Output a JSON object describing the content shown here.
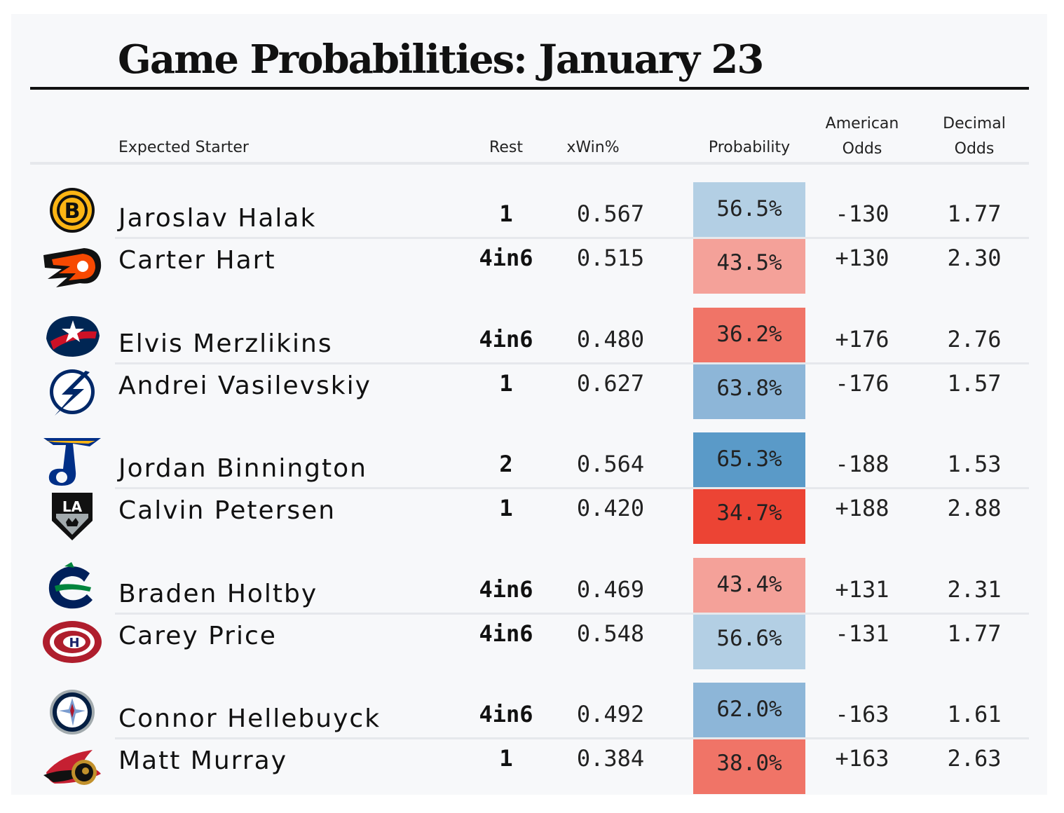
{
  "title": "Game Probabilities: January 23",
  "headers": {
    "starter": "Expected Starter",
    "rest": "Rest",
    "xwin": "xWin%",
    "probability": "Probability",
    "american_1": "American",
    "american_2": "Odds",
    "decimal_1": "Decimal",
    "decimal_2": "Odds"
  },
  "colors": {
    "blue_light": "#b3cfe4",
    "blue_mid": "#8db6d8",
    "blue_dark": "#5a9ac8",
    "red_light": "#f4a199",
    "red_mid": "#f07467",
    "red_dark": "#ec4434"
  },
  "games": [
    {
      "rows": [
        {
          "team_icon": "bruins-logo-icon",
          "name": "Jaroslav Halak",
          "rest": "1",
          "xwin": "0.567",
          "probability": "56.5%",
          "prob_value": 56.5,
          "american": "-130",
          "decimal": "1.77",
          "color": "#b3cfe4"
        },
        {
          "team_icon": "flyers-logo-icon",
          "name": "Carter Hart",
          "rest": "4in6",
          "xwin": "0.515",
          "probability": "43.5%",
          "prob_value": 43.5,
          "american": "+130",
          "decimal": "2.30",
          "color": "#f4a199"
        }
      ]
    },
    {
      "rows": [
        {
          "team_icon": "blue-jackets-logo-icon",
          "name": "Elvis Merzlikins",
          "rest": "4in6",
          "xwin": "0.480",
          "probability": "36.2%",
          "prob_value": 36.2,
          "american": "+176",
          "decimal": "2.76",
          "color": "#f07467"
        },
        {
          "team_icon": "lightning-logo-icon",
          "name": "Andrei Vasilevskiy",
          "rest": "1",
          "xwin": "0.627",
          "probability": "63.8%",
          "prob_value": 63.8,
          "american": "-176",
          "decimal": "1.57",
          "color": "#8db6d8"
        }
      ]
    },
    {
      "rows": [
        {
          "team_icon": "blues-logo-icon",
          "name": "Jordan Binnington",
          "rest": "2",
          "xwin": "0.564",
          "probability": "65.3%",
          "prob_value": 65.3,
          "american": "-188",
          "decimal": "1.53",
          "color": "#5a9ac8"
        },
        {
          "team_icon": "kings-logo-icon",
          "name": "Calvin Petersen",
          "rest": "1",
          "xwin": "0.420",
          "probability": "34.7%",
          "prob_value": 34.7,
          "american": "+188",
          "decimal": "2.88",
          "color": "#ec4434"
        }
      ]
    },
    {
      "rows": [
        {
          "team_icon": "canucks-logo-icon",
          "name": "Braden Holtby",
          "rest": "4in6",
          "xwin": "0.469",
          "probability": "43.4%",
          "prob_value": 43.4,
          "american": "+131",
          "decimal": "2.31",
          "color": "#f4a199"
        },
        {
          "team_icon": "canadiens-logo-icon",
          "name": "Carey Price",
          "rest": "4in6",
          "xwin": "0.548",
          "probability": "56.6%",
          "prob_value": 56.6,
          "american": "-131",
          "decimal": "1.77",
          "color": "#b3cfe4"
        }
      ]
    },
    {
      "rows": [
        {
          "team_icon": "jets-logo-icon",
          "name": "Connor Hellebuyck",
          "rest": "4in6",
          "xwin": "0.492",
          "probability": "62.0%",
          "prob_value": 62.0,
          "american": "-163",
          "decimal": "1.61",
          "color": "#8db6d8"
        },
        {
          "team_icon": "senators-logo-icon",
          "name": "Matt Murray",
          "rest": "1",
          "xwin": "0.384",
          "probability": "38.0%",
          "prob_value": 38.0,
          "american": "+163",
          "decimal": "2.63",
          "color": "#f07467"
        }
      ]
    }
  ]
}
